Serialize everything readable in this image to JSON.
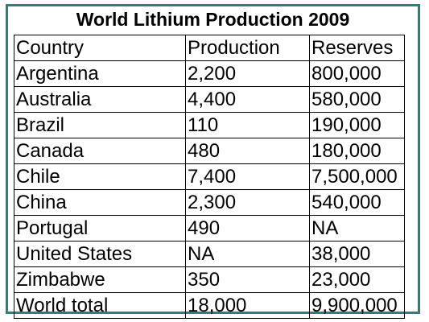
{
  "table": {
    "title": "World Lithium Production 2009",
    "columns": [
      "Country",
      "Production",
      "Reserves"
    ],
    "rows": [
      [
        "Argentina",
        "2,200",
        "800,000"
      ],
      [
        "Australia",
        "4,400",
        "580,000"
      ],
      [
        "Brazil",
        "110",
        "190,000"
      ],
      [
        "Canada",
        "480",
        "180,000"
      ],
      [
        "Chile",
        "7,400",
        "7,500,000"
      ],
      [
        "China",
        "2,300",
        "540,000"
      ],
      [
        "Portugal",
        "490",
        "NA"
      ],
      [
        "United States",
        "NA",
        "38,000"
      ],
      [
        "Zimbabwe",
        "350",
        "23,000"
      ],
      [
        "World total",
        "18,000",
        "9,900,000"
      ]
    ]
  },
  "colors": {
    "frame_border": "#2f7f78",
    "grid_lines": "#000000",
    "background": "#ffffff"
  }
}
